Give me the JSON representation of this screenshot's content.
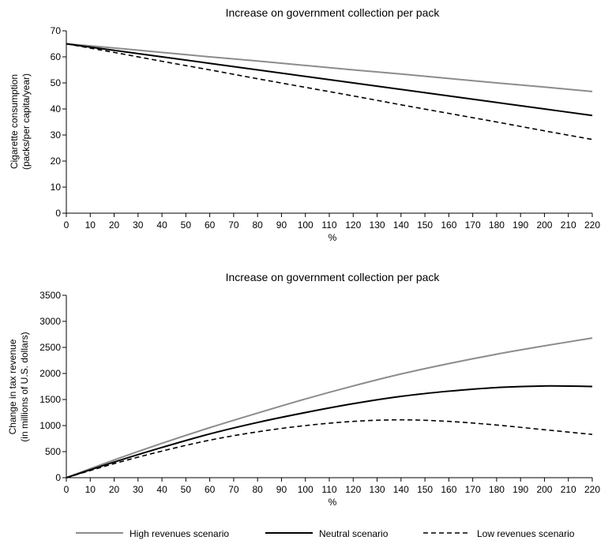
{
  "colors": {
    "high": "#8c8c8c",
    "neutral": "#000000",
    "low": "#000000",
    "axis": "#000000"
  },
  "chart_data": [
    {
      "type": "line",
      "title": "Increase on government collection per pack",
      "xlabel": "%",
      "ylabel_lines": [
        "Cigarette consumption",
        "(packs/per capita/year)"
      ],
      "xlim": [
        0,
        220
      ],
      "ylim": [
        0,
        70
      ],
      "xticks": [
        0,
        10,
        20,
        30,
        40,
        50,
        60,
        70,
        80,
        90,
        100,
        110,
        120,
        130,
        140,
        150,
        160,
        170,
        180,
        190,
        200,
        210,
        220
      ],
      "yticks": [
        0,
        10,
        20,
        30,
        40,
        50,
        60,
        70
      ],
      "x": [
        0,
        20,
        40,
        60,
        80,
        100,
        120,
        140,
        160,
        180,
        200,
        220
      ],
      "series": [
        {
          "key": "high",
          "name": "High revenues scenario",
          "values": [
            65,
            63.4,
            61.7,
            60.0,
            58.4,
            56.7,
            55.0,
            53.4,
            51.7,
            50.0,
            48.4,
            46.7
          ]
        },
        {
          "key": "neutral",
          "name": "Neutral scenario",
          "values": [
            65,
            62.5,
            60.0,
            57.5,
            55.0,
            52.5,
            50.0,
            47.5,
            45.0,
            42.5,
            40.0,
            37.5
          ]
        },
        {
          "key": "low",
          "name": "Low revenues scenario",
          "values": [
            65,
            61.7,
            58.3,
            55.0,
            51.6,
            48.3,
            45.0,
            41.6,
            38.3,
            35.0,
            31.6,
            28.3
          ]
        }
      ]
    },
    {
      "type": "line",
      "title": "Increase on government collection per pack",
      "xlabel": "%",
      "ylabel_lines": [
        "Change in tax revenue",
        "(in millions of U.S. dollars)"
      ],
      "xlim": [
        0,
        220
      ],
      "ylim": [
        0,
        3500
      ],
      "xticks": [
        0,
        10,
        20,
        30,
        40,
        50,
        60,
        70,
        80,
        90,
        100,
        110,
        120,
        130,
        140,
        150,
        160,
        170,
        180,
        190,
        200,
        210,
        220
      ],
      "yticks": [
        0,
        500,
        1000,
        1500,
        2000,
        2500,
        3000,
        3500
      ],
      "x": [
        0,
        20,
        40,
        60,
        80,
        100,
        120,
        140,
        160,
        180,
        200,
        220
      ],
      "series": [
        {
          "key": "high",
          "name": "High revenues scenario",
          "values": [
            0,
            340,
            660,
            960,
            1240,
            1510,
            1760,
            1990,
            2190,
            2370,
            2530,
            2680
          ]
        },
        {
          "key": "neutral",
          "name": "Neutral scenario",
          "values": [
            0,
            300,
            580,
            840,
            1060,
            1250,
            1420,
            1560,
            1660,
            1730,
            1760,
            1750
          ]
        },
        {
          "key": "low",
          "name": "Low revenues scenario",
          "values": [
            0,
            270,
            510,
            720,
            880,
            1000,
            1080,
            1110,
            1080,
            1010,
            920,
            830
          ]
        }
      ]
    }
  ],
  "legend": [
    {
      "key": "high",
      "label": "High revenues scenario"
    },
    {
      "key": "neutral",
      "label": "Neutral scenario"
    },
    {
      "key": "low",
      "label": "Low revenues scenario"
    }
  ]
}
